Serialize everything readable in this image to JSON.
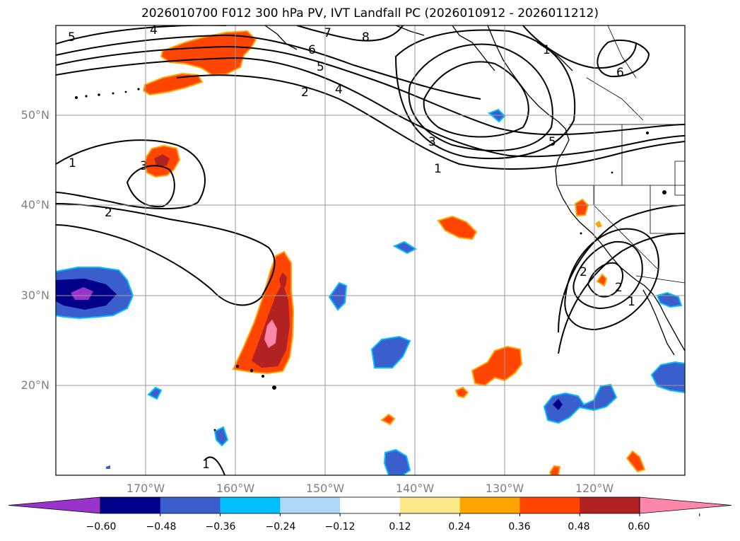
{
  "title": "2026010700 F012 300 hPa PV, IVT Landfall PC (2026010912 - 2026011212)",
  "axes": {
    "lat_ticks": [
      "50°N",
      "40°N",
      "30°N",
      "20°N"
    ],
    "lon_ticks": [
      "170°W",
      "160°W",
      "150°W",
      "140°W",
      "130°W",
      "120°W"
    ],
    "grid": true
  },
  "chart_data": {
    "type": "contour-map",
    "title": "2026010700 F012 300 hPa PV, IVT Landfall PC (2026010912 - 2026011212)",
    "lon_range_deg": [
      -180,
      -110
    ],
    "lat_range_deg": [
      10,
      60
    ],
    "contour_field": "300 hPa PV",
    "contour_labels": [
      "5",
      "4",
      "7",
      "8",
      "6",
      "5",
      "4",
      "2",
      "1",
      "3",
      "1",
      "3",
      "2",
      "6",
      "1",
      "5",
      "2",
      "2",
      "1",
      "1"
    ],
    "shaded_field": "IVT Landfall PC",
    "colorbar": {
      "levels": [
        -0.6,
        -0.48,
        -0.36,
        -0.24,
        -0.12,
        0.12,
        0.24,
        0.36,
        0.48,
        0.6
      ],
      "tick_labels": [
        "−0.60",
        "−0.48",
        "−0.36",
        "−0.24",
        "−0.12",
        "0.12",
        "0.24",
        "0.36",
        "0.48",
        "0.60"
      ],
      "colors": [
        "#9933cc",
        "#00008b",
        "#3a5fcd",
        "#00bfff",
        "#add8f6",
        "#ffffff",
        "#fde88a",
        "#ffa500",
        "#ff4500",
        "#b22222",
        "#ff88aa"
      ],
      "extend": "both"
    }
  }
}
